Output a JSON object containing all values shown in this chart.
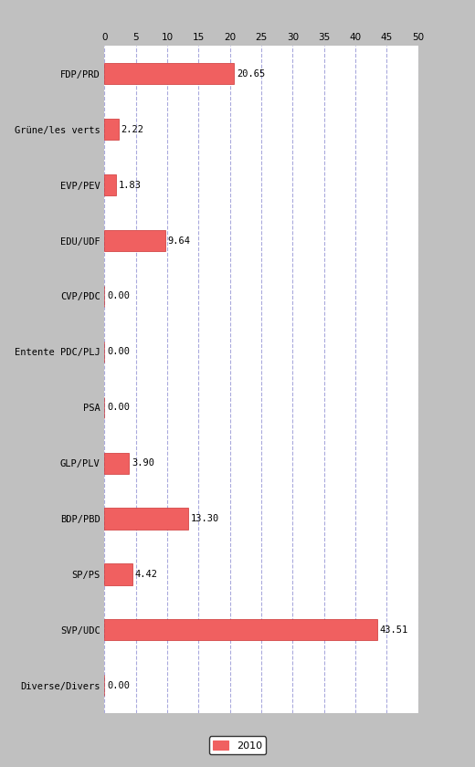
{
  "categories": [
    "FDP/PRD",
    "Grüne/les verts",
    "EVP/PEV",
    "EDU/UDF",
    "CVP/PDC",
    "Entente PDC/PLJ",
    "PSA",
    "GLP/PLV",
    "BDP/PBD",
    "SP/PS",
    "SVP/UDC",
    "Diverse/Divers"
  ],
  "values": [
    20.65,
    2.22,
    1.83,
    9.64,
    0.0,
    0.0,
    0.0,
    3.9,
    13.3,
    4.42,
    43.51,
    0.0
  ],
  "bar_color": "#f06060",
  "bar_edge_color": "#cc3333",
  "xlim": [
    0,
    50
  ],
  "xticks": [
    0,
    5,
    10,
    15,
    20,
    25,
    30,
    35,
    40,
    45,
    50
  ],
  "background_color": "#c0c0c0",
  "plot_background_color": "#ffffff",
  "grid_color": "#aaaadd",
  "label_fontsize": 7.5,
  "value_fontsize": 7.5,
  "legend_label": "2010",
  "legend_fontsize": 8,
  "bar_height": 0.38
}
